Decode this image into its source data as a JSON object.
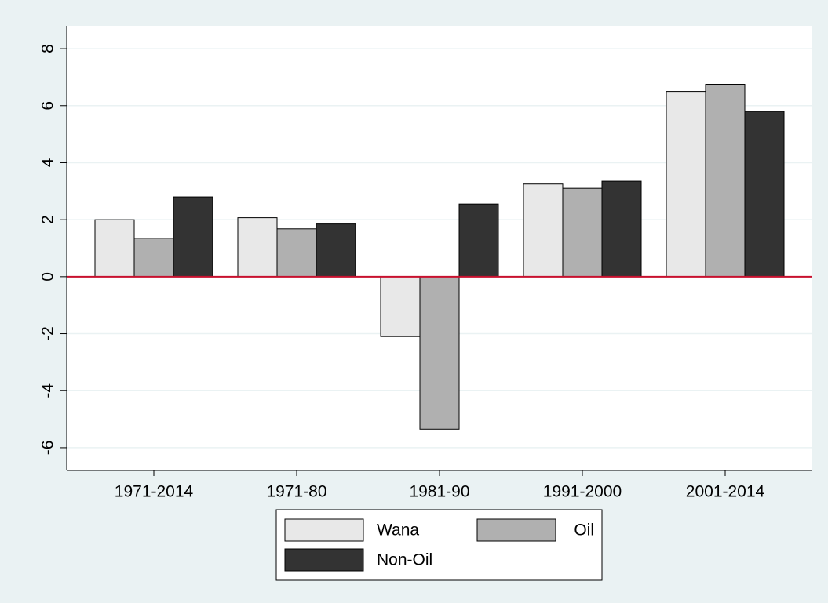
{
  "chart_data": {
    "type": "bar",
    "categories": [
      "1971-2014",
      "1971-80",
      "1981-90",
      "1991-2000",
      "2001-2014"
    ],
    "series": [
      {
        "name": "Wana",
        "color": "#e8e8e8",
        "values": [
          2.0,
          2.07,
          -2.1,
          3.25,
          6.5
        ]
      },
      {
        "name": "Oil",
        "color": "#b0b0b0",
        "values": [
          1.35,
          1.68,
          -5.35,
          3.1,
          6.75
        ]
      },
      {
        "name": "Non-Oil",
        "color": "#333333",
        "values": [
          2.8,
          1.85,
          2.55,
          3.35,
          5.8
        ]
      }
    ],
    "ylim": [
      -6.8,
      8.8
    ],
    "yticks": [
      -6,
      -4,
      -2,
      0,
      2,
      4,
      6,
      8
    ],
    "grid": true,
    "reference_line": {
      "value": 0,
      "color": "#c8102e"
    },
    "legend": "bottom"
  }
}
